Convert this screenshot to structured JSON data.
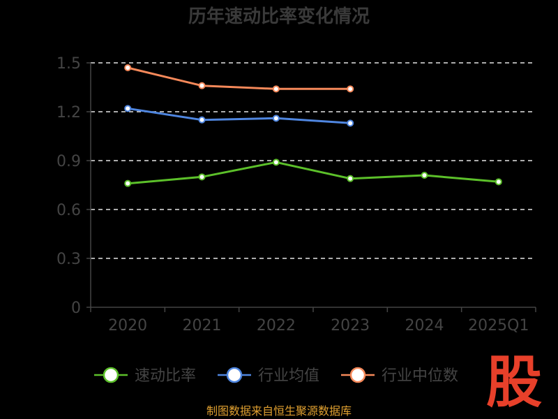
{
  "chart_data": {
    "type": "line",
    "title": "历年速动比率变化情况",
    "categories": [
      "2020",
      "2021",
      "2022",
      "2023",
      "2024",
      "2025Q1"
    ],
    "y_ticks": [
      "0",
      "0.3",
      "0.6",
      "0.9",
      "1.2",
      "1.5"
    ],
    "ylim": [
      0,
      1.5
    ],
    "grid": true,
    "legend_position": "bottom",
    "series": [
      {
        "name": "速动比率",
        "color": "#5cc02a",
        "values": [
          0.76,
          0.8,
          0.89,
          0.79,
          0.81,
          0.77
        ]
      },
      {
        "name": "行业均值",
        "color": "#4f86e0",
        "values": [
          1.22,
          1.15,
          1.16,
          1.13,
          null,
          null
        ]
      },
      {
        "name": "行业中位数",
        "color": "#f6895a",
        "values": [
          1.47,
          1.36,
          1.34,
          1.34,
          null,
          null
        ]
      }
    ]
  },
  "source": "制图数据来自恒生聚源数据库",
  "logo": "股"
}
